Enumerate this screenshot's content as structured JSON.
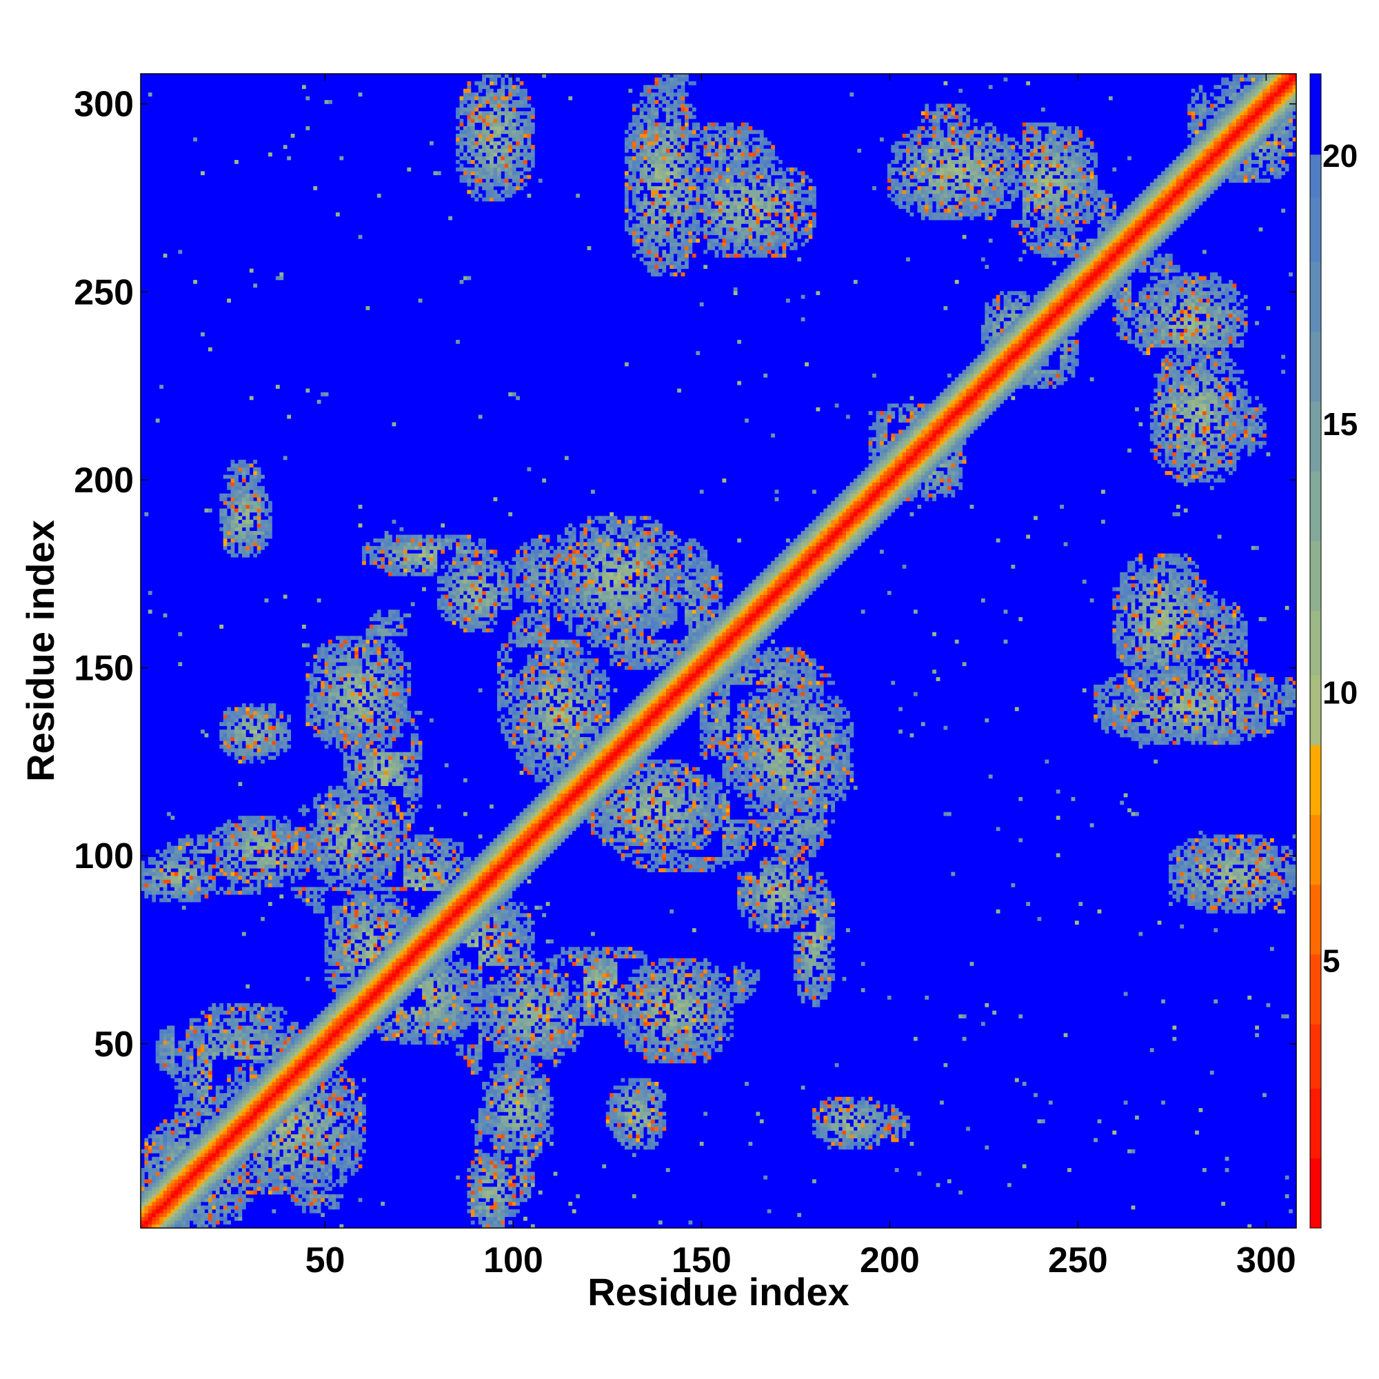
{
  "chart_data": {
    "type": "heatmap",
    "title": "",
    "xlabel": "Residue index",
    "ylabel": "Residue index",
    "n_residues": 308,
    "xlim": [
      1,
      308
    ],
    "ylim": [
      1,
      308
    ],
    "x_ticks": [
      {
        "value": 50,
        "label": "50"
      },
      {
        "value": 100,
        "label": "100"
      },
      {
        "value": 150,
        "label": "150"
      },
      {
        "value": 200,
        "label": "200"
      },
      {
        "value": 250,
        "label": "250"
      },
      {
        "value": 300,
        "label": "300"
      }
    ],
    "y_ticks": [
      {
        "value": 50,
        "label": "50"
      },
      {
        "value": 100,
        "label": "100"
      },
      {
        "value": 150,
        "label": "150"
      },
      {
        "value": 200,
        "label": "200"
      },
      {
        "value": 250,
        "label": "250"
      },
      {
        "value": 300,
        "label": "300"
      }
    ],
    "colorbar": {
      "vmin": 0,
      "vmax": 21.5,
      "ticks": [
        {
          "value": 5,
          "label": "5"
        },
        {
          "value": 10,
          "label": "10"
        },
        {
          "value": 15,
          "label": "15"
        },
        {
          "value": 20,
          "label": "20"
        }
      ],
      "levels": [
        {
          "from": 0,
          "to": 1.3,
          "color": "#ff0000"
        },
        {
          "from": 1.3,
          "to": 2.6,
          "color": "#ff1a00"
        },
        {
          "from": 2.6,
          "to": 3.8,
          "color": "#ff3300"
        },
        {
          "from": 3.8,
          "to": 5.1,
          "color": "#ff4d00"
        },
        {
          "from": 5.1,
          "to": 6.4,
          "color": "#ff6a00"
        },
        {
          "from": 6.4,
          "to": 7.7,
          "color": "#ff8c00"
        },
        {
          "from": 7.7,
          "to": 9.0,
          "color": "#ffaa00"
        },
        {
          "from": 9.0,
          "to": 10.3,
          "color": "#a8bd7e"
        },
        {
          "from": 10.3,
          "to": 11.5,
          "color": "#9cb886"
        },
        {
          "from": 11.5,
          "to": 12.8,
          "color": "#90b190"
        },
        {
          "from": 12.8,
          "to": 14.1,
          "color": "#83a99a"
        },
        {
          "from": 14.1,
          "to": 15.4,
          "color": "#779fa4"
        },
        {
          "from": 15.4,
          "to": 16.7,
          "color": "#6b95ae"
        },
        {
          "from": 16.7,
          "to": 18.0,
          "color": "#608cb8"
        },
        {
          "from": 18.0,
          "to": 19.2,
          "color": "#5684c0"
        },
        {
          "from": 19.2,
          "to": 20.0,
          "color": "#4f7dc6"
        },
        {
          "from": 20.0,
          "to": 21.5,
          "color": "#0000ff"
        }
      ]
    },
    "background_value": 21.5,
    "background_color": "#0000ff",
    "diagonal_band_halfwidth": 9,
    "contact_regions": [
      {
        "x": [
          1,
          30
        ],
        "y": [
          1,
          30
        ]
      },
      {
        "x": [
          20,
          60
        ],
        "y": [
          10,
          45
        ]
      },
      {
        "x": [
          5,
          25
        ],
        "y": [
          40,
          55
        ]
      },
      {
        "x": [
          0,
          20
        ],
        "y": [
          88,
          100
        ]
      },
      {
        "x": [
          20,
          45
        ],
        "y": [
          92,
          110
        ]
      },
      {
        "x": [
          45,
          70
        ],
        "y": [
          92,
          118
        ]
      },
      {
        "x": [
          22,
          40
        ],
        "y": [
          126,
          140
        ]
      },
      {
        "x": [
          22,
          35
        ],
        "y": [
          180,
          200
        ]
      },
      {
        "x": [
          45,
          72
        ],
        "y": [
          128,
          158
        ]
      },
      {
        "x": [
          50,
          75
        ],
        "y": [
          60,
          90
        ]
      },
      {
        "x": [
          75,
          105
        ],
        "y": [
          60,
          90
        ]
      },
      {
        "x": [
          85,
          115
        ],
        "y": [
          40,
          70
        ]
      },
      {
        "x": [
          90,
          105
        ],
        "y": [
          5,
          40
        ]
      },
      {
        "x": [
          125,
          140
        ],
        "y": [
          22,
          38
        ]
      },
      {
        "x": [
          180,
          205
        ],
        "y": [
          22,
          34
        ]
      },
      {
        "x": [
          105,
          140
        ],
        "y": [
          55,
          75
        ]
      },
      {
        "x": [
          130,
          165
        ],
        "y": [
          60,
          72
        ]
      },
      {
        "x": [
          100,
          125
        ],
        "y": [
          120,
          155
        ]
      },
      {
        "x": [
          110,
          145
        ],
        "y": [
          158,
          190
        ]
      },
      {
        "x": [
          150,
          185
        ],
        "y": [
          118,
          155
        ]
      },
      {
        "x": [
          125,
          165
        ],
        "y": [
          96,
          125
        ]
      },
      {
        "x": [
          165,
          185
        ],
        "y": [
          100,
          130
        ]
      },
      {
        "x": [
          130,
          150
        ],
        "y": [
          255,
          305
        ]
      },
      {
        "x": [
          145,
          180
        ],
        "y": [
          260,
          285
        ]
      },
      {
        "x": [
          200,
          235
        ],
        "y": [
          270,
          295
        ]
      },
      {
        "x": [
          230,
          255
        ],
        "y": [
          265,
          295
        ]
      },
      {
        "x": [
          270,
          300
        ],
        "y": [
          205,
          225
        ]
      },
      {
        "x": [
          260,
          295
        ],
        "y": [
          145,
          170
        ]
      },
      {
        "x": [
          285,
          308
        ],
        "y": [
          135,
          150
        ]
      },
      {
        "x": [
          275,
          308
        ],
        "y": [
          85,
          105
        ]
      },
      {
        "x": [
          260,
          280
        ],
        "y": [
          235,
          260
        ]
      },
      {
        "x": [
          285,
          308
        ],
        "y": [
          280,
          308
        ]
      },
      {
        "x": [
          225,
          245
        ],
        "y": [
          230,
          250
        ]
      },
      {
        "x": [
          200,
          220
        ],
        "y": [
          195,
          215
        ]
      },
      {
        "x": [
          80,
          100
        ],
        "y": [
          160,
          180
        ]
      },
      {
        "x": [
          60,
          95
        ],
        "y": [
          175,
          185
        ]
      }
    ]
  }
}
